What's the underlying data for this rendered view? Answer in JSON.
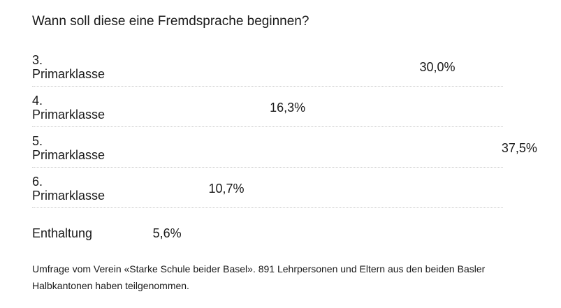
{
  "title": "Wann soll diese eine Fremdsprache beginnen?",
  "footnote": "Umfrage vom Verein «Starke Schule beider Basel». 891 Lehrpersonen und Eltern aus den beiden Basler Halbkantonen haben teilgenommen.",
  "chart_data": {
    "type": "bar",
    "orientation": "horizontal",
    "title": "Wann soll diese eine Fremdsprache beginnen?",
    "categories": [
      [
        "3.",
        "Primarklasse"
      ],
      [
        "4.",
        "Primarklasse"
      ],
      [
        "5.",
        "Primarklasse"
      ],
      [
        "6.",
        "Primarklasse"
      ],
      [
        "Enthaltung"
      ]
    ],
    "values": [
      30.0,
      16.3,
      37.5,
      10.7,
      5.6
    ],
    "value_labels": [
      "30,0%",
      "16,3%",
      "37,5%",
      "10,7%",
      "5,6%"
    ],
    "unit": "%",
    "bars_visible": false,
    "grid": false,
    "legend": "none"
  }
}
